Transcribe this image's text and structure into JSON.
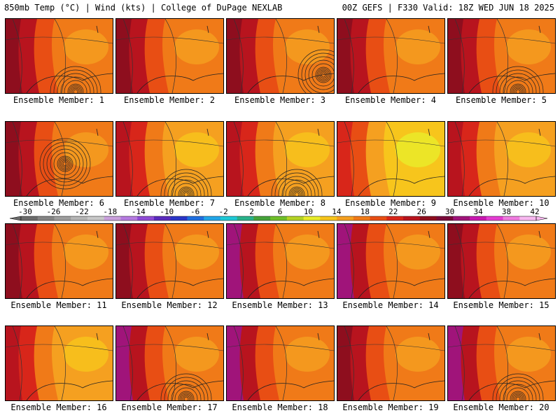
{
  "header": {
    "left": "850mb Temp (°C) | Wind (kts) | College of DuPage NEXLAB",
    "right": "00Z GEFS | F330 Valid: 18Z WED JUN 18 2025"
  },
  "panels": [
    {
      "label": "Ensemble Member: 1",
      "style": "red",
      "cyclone": "bottom"
    },
    {
      "label": "Ensemble Member: 2",
      "style": "red",
      "cyclone": "none"
    },
    {
      "label": "Ensemble Member: 3",
      "style": "red",
      "cyclone": "right"
    },
    {
      "label": "Ensemble Member: 4",
      "style": "red",
      "cyclone": "none"
    },
    {
      "label": "Ensemble Member: 5",
      "style": "red",
      "cyclone": "bottom"
    },
    {
      "label": "Ensemble Member: 6",
      "style": "red",
      "cyclone": "center"
    },
    {
      "label": "Ensemble Member: 7",
      "style": "orange",
      "cyclone": "bottom"
    },
    {
      "label": "Ensemble Member: 8",
      "style": "orange",
      "cyclone": "bottom"
    },
    {
      "label": "Ensemble Member: 9",
      "style": "yellow",
      "cyclone": "none"
    },
    {
      "label": "Ensemble Member: 10",
      "style": "orange",
      "cyclone": "none"
    },
    {
      "label": "Ensemble Member: 11",
      "style": "red",
      "cyclone": "none"
    },
    {
      "label": "Ensemble Member: 12",
      "style": "red",
      "cyclone": "none"
    },
    {
      "label": "Ensemble Member: 13",
      "style": "magenta",
      "cyclone": "none"
    },
    {
      "label": "Ensemble Member: 14",
      "style": "magenta",
      "cyclone": "none"
    },
    {
      "label": "Ensemble Member: 15",
      "style": "red",
      "cyclone": "none"
    },
    {
      "label": "Ensemble Member: 16",
      "style": "orange",
      "cyclone": "none"
    },
    {
      "label": "Ensemble Member: 17",
      "style": "magenta",
      "cyclone": "bottom"
    },
    {
      "label": "Ensemble Member: 18",
      "style": "magenta",
      "cyclone": "none"
    },
    {
      "label": "Ensemble Member: 19",
      "style": "red",
      "cyclone": "none"
    },
    {
      "label": "Ensemble Member: 20",
      "style": "magenta",
      "cyclone": "bottom"
    }
  ],
  "colorbar": {
    "tick_labels": [
      "-30",
      "-26",
      "-22",
      "-18",
      "-14",
      "-10",
      "-6",
      "-2",
      "2",
      "6",
      "10",
      "14",
      "18",
      "22",
      "26",
      "30",
      "34",
      "38",
      "42"
    ],
    "colors": [
      "#6b6b6b",
      "#858585",
      "#9e9e9e",
      "#b5b5b5",
      "#c8c8c8",
      "#c9a0dc",
      "#b57be0",
      "#8f4bd6",
      "#5a2bbd",
      "#2a36c8",
      "#1f6fe0",
      "#22a6e8",
      "#1fc9d6",
      "#2ab28a",
      "#46a33a",
      "#6fbf2a",
      "#b4d326",
      "#e8ec2a",
      "#f7c51c",
      "#f5a020",
      "#f07a18",
      "#e84e14",
      "#d8261a",
      "#b8141e",
      "#8e0e1e",
      "#7a0a3a",
      "#a0147a",
      "#c818b0",
      "#e43cd2",
      "#f07ce0",
      "#f8b8f0"
    ]
  }
}
